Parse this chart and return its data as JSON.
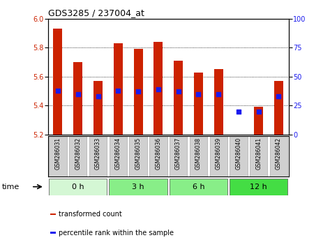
{
  "title": "GDS3285 / 237004_at",
  "samples": [
    "GSM286031",
    "GSM286032",
    "GSM286033",
    "GSM286034",
    "GSM286035",
    "GSM286036",
    "GSM286037",
    "GSM286038",
    "GSM286039",
    "GSM286040",
    "GSM286041",
    "GSM286042"
  ],
  "bar_values": [
    5.93,
    5.7,
    5.57,
    5.83,
    5.79,
    5.84,
    5.71,
    5.63,
    5.65,
    5.2,
    5.39,
    5.57
  ],
  "bar_base": 5.2,
  "percentile_values": [
    38,
    35,
    33,
    38,
    37,
    39,
    37,
    35,
    35,
    20,
    20,
    33
  ],
  "left_ylim": [
    5.2,
    6.0
  ],
  "left_yticks": [
    5.2,
    5.4,
    5.6,
    5.8,
    6.0
  ],
  "right_ylim": [
    0,
    100
  ],
  "right_yticks": [
    0,
    25,
    50,
    75,
    100
  ],
  "bar_color": "#cc2200",
  "percentile_color": "#1a1aee",
  "label_box_color": "#d0d0d0",
  "grid_yticks": [
    5.4,
    5.6,
    5.8
  ],
  "time_groups": [
    {
      "label": "0 h",
      "indices": [
        0,
        1,
        2
      ],
      "color": "#d4f7d4"
    },
    {
      "label": "3 h",
      "indices": [
        3,
        4,
        5
      ],
      "color": "#88ee88"
    },
    {
      "label": "6 h",
      "indices": [
        6,
        7,
        8
      ],
      "color": "#88ee88"
    },
    {
      "label": "12 h",
      "indices": [
        9,
        10,
        11
      ],
      "color": "#44dd44"
    }
  ],
  "legend_items": [
    {
      "label": "transformed count",
      "color": "#cc2200"
    },
    {
      "label": "percentile rank within the sample",
      "color": "#1a1aee"
    }
  ]
}
